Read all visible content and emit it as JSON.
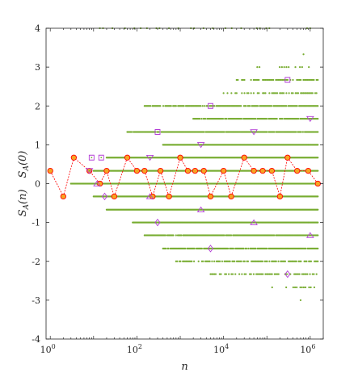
{
  "chart_data": {
    "type": "scatter",
    "title": "",
    "xlabel": "n",
    "ylabel_parts": [
      "S_A(n)",
      "S_A(0)"
    ],
    "xscale": "log",
    "xlim": [
      0.8,
      2000000
    ],
    "ylim": [
      -4,
      4
    ],
    "grid": false,
    "legend": "none",
    "x_ticks": [
      {
        "value": 1,
        "base": "10",
        "exp": "0"
      },
      {
        "value": 100,
        "base": "10",
        "exp": "2"
      },
      {
        "value": 10000,
        "base": "10",
        "exp": "4"
      },
      {
        "value": 1000000,
        "base": "10",
        "exp": "6"
      }
    ],
    "y_ticks": [
      {
        "value": 4,
        "label": "4"
      },
      {
        "value": 3,
        "label": "3"
      },
      {
        "value": 2,
        "label": "2"
      },
      {
        "value": 1,
        "label": "1"
      },
      {
        "value": 0,
        "label": "0"
      },
      {
        "value": -1,
        "label": "-1"
      },
      {
        "value": -2,
        "label": "-2"
      },
      {
        "value": -3,
        "label": "-3"
      },
      {
        "value": -4,
        "label": "-4"
      }
    ],
    "colors": {
      "green_dots": "#77ac30",
      "red_line": "#ff0000",
      "red_circle_fill": "#f5a623",
      "magenta": "#b23cd6",
      "axis": "#262626"
    },
    "series": [
      {
        "marker": "dot-cloud",
        "color": "#77ac30",
        "bands": [
          {
            "y": 4.0,
            "x_start": 10,
            "x_end": 1000000,
            "density": 0.25
          },
          {
            "y": 3.33,
            "x_start": 700000,
            "x_end": 700000,
            "density": 1
          },
          {
            "y": 3.0,
            "x_start": 60000,
            "x_end": 1500000,
            "density": 0.35
          },
          {
            "y": 2.67,
            "x_start": 20000,
            "x_end": 1500000,
            "density": 0.6
          },
          {
            "y": 2.33,
            "x_start": 10000,
            "x_end": 1500000,
            "density": 0.6
          },
          {
            "y": 2.0,
            "x_start": 150,
            "x_end": 1500000,
            "density": 0.8
          },
          {
            "y": 1.67,
            "x_start": 2000,
            "x_end": 1500000,
            "density": 0.85
          },
          {
            "y": 1.33,
            "x_start": 60,
            "x_end": 1500000,
            "density": 0.9
          },
          {
            "y": 1.0,
            "x_start": 400,
            "x_end": 1500000,
            "density": 0.95
          },
          {
            "y": 0.67,
            "x_start": 20,
            "x_end": 1500000,
            "density": 1
          },
          {
            "y": 0.33,
            "x_start": 10,
            "x_end": 1500000,
            "density": 1
          },
          {
            "y": 0.0,
            "x_start": 3,
            "x_end": 1500000,
            "density": 1
          },
          {
            "y": -0.33,
            "x_start": 10,
            "x_end": 1500000,
            "density": 1
          },
          {
            "y": -0.67,
            "x_start": 20,
            "x_end": 1500000,
            "density": 1
          },
          {
            "y": -1.0,
            "x_start": 80,
            "x_end": 1500000,
            "density": 0.95
          },
          {
            "y": -1.33,
            "x_start": 150,
            "x_end": 1500000,
            "density": 0.9
          },
          {
            "y": -1.67,
            "x_start": 400,
            "x_end": 1500000,
            "density": 0.85
          },
          {
            "y": -2.0,
            "x_start": 800,
            "x_end": 1500000,
            "density": 0.7
          },
          {
            "y": -2.33,
            "x_start": 5000,
            "x_end": 1500000,
            "density": 0.6
          },
          {
            "y": -2.67,
            "x_start": 100000,
            "x_end": 1500000,
            "density": 0.45
          },
          {
            "y": -3.0,
            "x_start": 600000,
            "x_end": 600000,
            "density": 1
          }
        ]
      },
      {
        "marker": "circle-line",
        "color": "#ff0000",
        "points": [
          [
            1,
            0.33
          ],
          [
            2,
            -0.33
          ],
          [
            3.5,
            0.67
          ],
          [
            8,
            0.33
          ],
          [
            14,
            0.0
          ],
          [
            20,
            0.33
          ],
          [
            30,
            -0.33
          ],
          [
            60,
            0.67
          ],
          [
            100,
            0.33
          ],
          [
            150,
            0.33
          ],
          [
            230,
            -0.33
          ],
          [
            350,
            0.33
          ],
          [
            550,
            -0.33
          ],
          [
            1000,
            0.67
          ],
          [
            1500,
            0.33
          ],
          [
            2200,
            0.33
          ],
          [
            3500,
            0.33
          ],
          [
            5000,
            -0.33
          ],
          [
            10000,
            0.33
          ],
          [
            15000,
            -0.33
          ],
          [
            30000,
            0.67
          ],
          [
            50000,
            0.33
          ],
          [
            80000,
            0.33
          ],
          [
            130000,
            0.33
          ],
          [
            200000,
            -0.33
          ],
          [
            300000,
            0.67
          ],
          [
            500000,
            0.33
          ],
          [
            900000,
            0.33
          ],
          [
            1500000,
            0.0
          ]
        ]
      },
      {
        "marker": "triangle-down",
        "color": "#b23cd6",
        "points": [
          [
            8,
            0.33
          ],
          [
            200,
            0.67
          ],
          [
            3000,
            1.0
          ],
          [
            50000,
            1.33
          ],
          [
            1000000,
            1.67
          ]
        ]
      },
      {
        "marker": "triangle-up",
        "color": "#b23cd6",
        "points": [
          [
            12,
            0.0
          ],
          [
            200,
            -0.33
          ],
          [
            3000,
            -0.67
          ],
          [
            50000,
            -1.0
          ],
          [
            1000000,
            -1.33
          ]
        ]
      },
      {
        "marker": "square",
        "color": "#b23cd6",
        "points": [
          [
            9,
            0.67
          ],
          [
            15,
            0.67
          ],
          [
            300,
            1.33
          ],
          [
            5000,
            2.0
          ],
          [
            300000,
            2.67
          ]
        ]
      },
      {
        "marker": "diamond",
        "color": "#b23cd6",
        "points": [
          [
            18,
            -0.33
          ],
          [
            300,
            -1.0
          ],
          [
            5000,
            -1.67
          ],
          [
            300000,
            -2.33
          ]
        ]
      }
    ]
  }
}
